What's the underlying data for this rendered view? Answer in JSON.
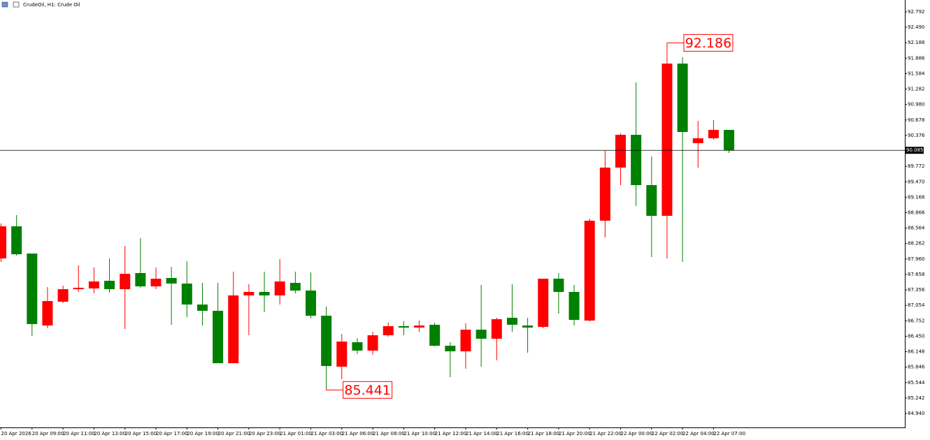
{
  "chart_data": {
    "type": "candlestick",
    "title": "CrudeOil, H1:  Crude Oil",
    "categories": [
      "20 Apr 2026",
      null,
      "20 Apr 09:00",
      null,
      "20 Apr 11:00",
      null,
      "20 Apr 13:00",
      null,
      "20 Apr 15:00",
      null,
      "20 Apr 17:00",
      null,
      "20 Apr 19:00",
      null,
      "20 Apr 21:00",
      null,
      "20 Apr 23:00",
      null,
      "21 Apr 01:00",
      null,
      "21 Apr 03:00",
      null,
      "21 Apr 06:00",
      null,
      "21 Apr 08:00",
      null,
      "21 Apr 10:00",
      null,
      "21 Apr 12:00",
      null,
      "21 Apr 14:00",
      null,
      "21 Apr 16:00",
      null,
      "21 Apr 18:00",
      null,
      "21 Apr 20:00",
      null,
      "21 Apr 22:00",
      null,
      "22 Apr 00:00",
      null,
      "22 Apr 02:00",
      null,
      "22 Apr 04:00",
      null,
      "22 Apr 07:00",
      null
    ],
    "open": [
      87.971,
      88.599,
      88.067,
      86.66,
      87.125,
      87.37,
      87.384,
      87.534,
      87.37,
      87.685,
      87.425,
      87.589,
      87.48,
      87.07,
      86.947,
      85.923,
      87.248,
      87.316,
      87.248,
      87.493,
      87.343,
      86.851,
      85.855,
      86.333,
      86.169,
      86.469,
      86.647,
      86.619,
      86.674,
      86.264,
      86.155,
      86.578,
      86.401,
      86.811,
      86.66,
      86.633,
      87.575,
      87.316,
      86.756,
      88.709,
      89.747,
      90.388,
      89.405,
      88.804,
      91.781,
      90.225,
      90.32,
      90.484
    ],
    "high": [
      88.654,
      88.818,
      88.067,
      87.411,
      87.439,
      87.835,
      87.794,
      87.971,
      88.217,
      88.367,
      87.794,
      87.807,
      87.917,
      87.493,
      87.493,
      87.712,
      87.466,
      87.712,
      87.958,
      87.712,
      87.698,
      87.029,
      86.496,
      86.414,
      86.537,
      86.715,
      86.742,
      86.756,
      86.715,
      86.333,
      86.701,
      87.452,
      86.811,
      87.466,
      86.811,
      87.575,
      87.685,
      87.452,
      88.75,
      90.088,
      90.416,
      91.413,
      89.965,
      92.186,
      91.904,
      90.662,
      90.675,
      90.484
    ],
    "low": [
      87.903,
      88.026,
      86.455,
      86.606,
      87.097,
      87.316,
      87.288,
      87.302,
      86.592,
      87.398,
      87.37,
      86.674,
      86.824,
      86.66,
      85.923,
      85.923,
      86.469,
      86.92,
      87.07,
      87.288,
      86.797,
      85.441,
      85.609,
      86.1,
      86.087,
      86.442,
      86.469,
      86.537,
      86.251,
      85.65,
      85.814,
      85.855,
      85.978,
      86.537,
      86.128,
      86.606,
      86.892,
      86.66,
      86.742,
      88.381,
      89.405,
      88.995,
      87.999,
      87.971,
      87.903,
      89.747,
      90.293,
      90.033
    ],
    "close": [
      88.599,
      88.053,
      86.688,
      87.138,
      87.37,
      87.398,
      87.521,
      87.37,
      87.671,
      87.425,
      87.575,
      87.48,
      87.07,
      86.947,
      85.923,
      87.248,
      87.316,
      87.248,
      87.521,
      87.343,
      86.851,
      85.868,
      86.346,
      86.169,
      86.469,
      86.647,
      86.619,
      86.66,
      86.264,
      86.155,
      86.578,
      86.401,
      86.783,
      86.674,
      86.619,
      87.575,
      87.316,
      86.77,
      88.709,
      89.747,
      90.388,
      89.405,
      88.804,
      91.781,
      90.443,
      90.32,
      90.484,
      90.085
    ],
    "up_color": "#ff0000",
    "down_color": "#008000",
    "ylim": [
      84.667,
      93.024
    ],
    "yticks": [
      92.792,
      {
        "value": 92.49,
        "label": "92.490"
      },
      92.188,
      91.886,
      91.584,
      91.282,
      {
        "value": 90.98,
        "label": "90.980"
      },
      90.678,
      90.376,
      89.772,
      {
        "value": 89.47,
        "label": "89.470"
      },
      89.168,
      88.866,
      88.564,
      88.262,
      {
        "value": 87.96,
        "label": "87.960"
      },
      87.658,
      87.356,
      87.054,
      86.752,
      {
        "value": 86.45,
        "label": "86.450"
      },
      86.148,
      85.846,
      85.544,
      85.242,
      {
        "value": 84.94,
        "label": "84.940"
      }
    ],
    "last_price": 90.085,
    "max_label": 92.186,
    "min_label": 85.441
  }
}
